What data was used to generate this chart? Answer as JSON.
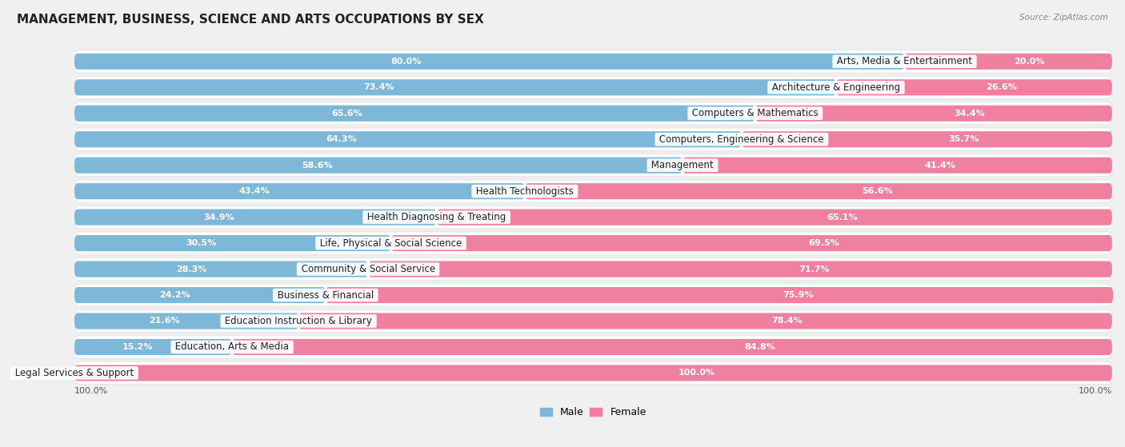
{
  "title": "MANAGEMENT, BUSINESS, SCIENCE AND ARTS OCCUPATIONS BY SEX",
  "source": "Source: ZipAtlas.com",
  "categories": [
    "Arts, Media & Entertainment",
    "Architecture & Engineering",
    "Computers & Mathematics",
    "Computers, Engineering & Science",
    "Management",
    "Health Technologists",
    "Health Diagnosing & Treating",
    "Life, Physical & Social Science",
    "Community & Social Service",
    "Business & Financial",
    "Education Instruction & Library",
    "Education, Arts & Media",
    "Legal Services & Support"
  ],
  "male": [
    80.0,
    73.4,
    65.6,
    64.3,
    58.6,
    43.4,
    34.9,
    30.5,
    28.3,
    24.2,
    21.6,
    15.2,
    0.0
  ],
  "female": [
    20.0,
    26.6,
    34.4,
    35.7,
    41.4,
    56.6,
    65.1,
    69.5,
    71.7,
    75.9,
    78.4,
    84.8,
    100.0
  ],
  "male_color": "#7eb8d8",
  "female_color": "#f080a0",
  "bg_color": "#f0f0f0",
  "row_bg_color": "#e8e8e8",
  "bar_bg_color": "#ffffff",
  "title_fontsize": 11,
  "label_fontsize": 8.5,
  "value_fontsize": 8,
  "legend_fontsize": 9,
  "bar_height": 0.62
}
